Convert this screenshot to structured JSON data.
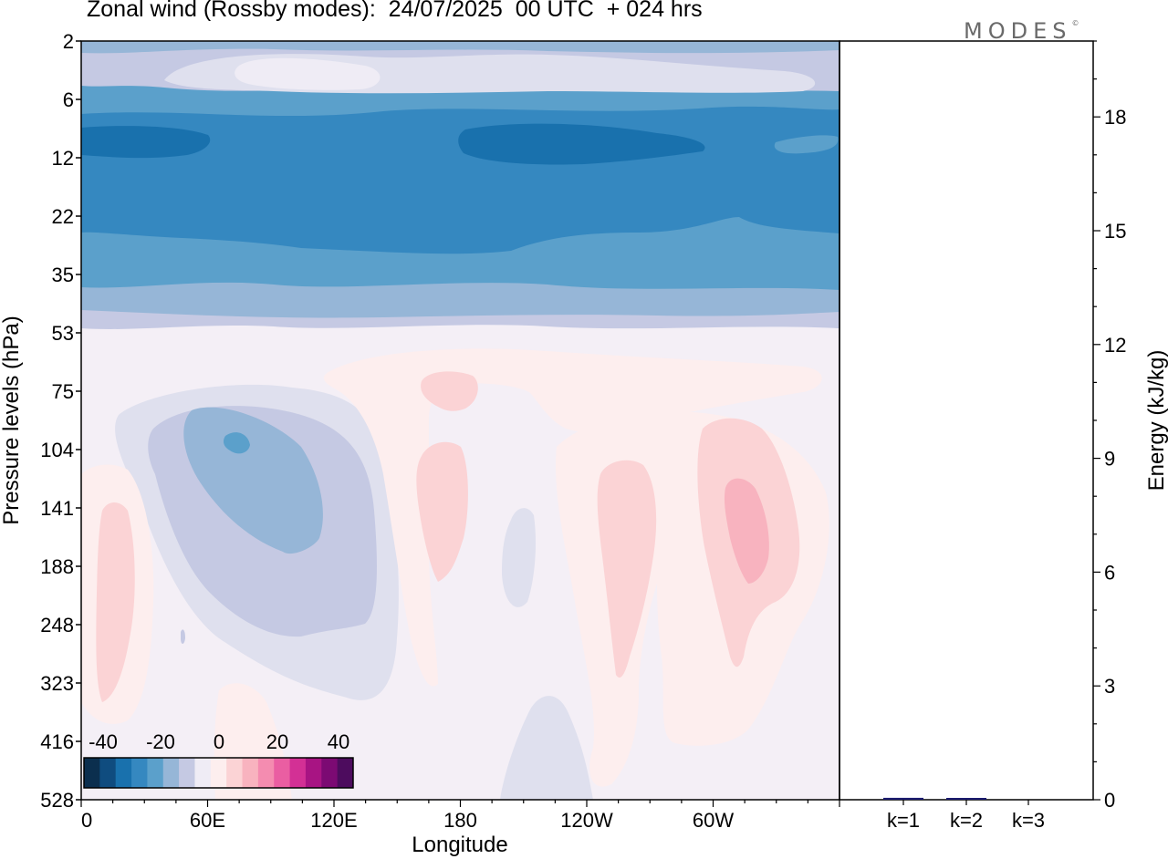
{
  "title": "Zonal wind (Rossby modes):  24/07/2025  00 UTC  + 024 hrs",
  "logo": {
    "text": "MODES",
    "mark": "©"
  },
  "chart_data": [
    {
      "type": "heatmap",
      "title": "Zonal wind (Rossby modes):  24/07/2025  00 UTC  + 024 hrs",
      "xlabel": "Longitude",
      "ylabel": "Pressure levels (hPa)",
      "x_ticks": [
        "0",
        "60E",
        "120E",
        "180",
        "120W",
        "60W"
      ],
      "y_ticks": [
        "2",
        "6",
        "12",
        "22",
        "35",
        "53",
        "75",
        "104",
        "141",
        "188",
        "248",
        "323",
        "416",
        "528"
      ],
      "colorbar": {
        "tick_labels": [
          "-40",
          "-20",
          "0",
          "20",
          "40"
        ],
        "colors": [
          "#0b2f4e",
          "#0f4c7f",
          "#1971ad",
          "#3588c0",
          "#5ba0cb",
          "#96b6d7",
          "#c5c9e3",
          "#efecf5",
          "#fdeeee",
          "#fbd3d5",
          "#f8b3bf",
          "#f48cb0",
          "#ea5ea2",
          "#d33095",
          "#a81483",
          "#7c0a73",
          "#4d0c5e"
        ]
      },
      "regions_description_values_m_s": {
        "upper_easterly_max": -25,
        "westerly_core_max_near_190hPa_60W": 10,
        "easterly_core_near_110hPa_75E": -15
      }
    },
    {
      "type": "bar",
      "ylabel": "Energy (kJ/kg)",
      "categories": [
        "k=1",
        "k=2",
        "k=3"
      ],
      "values": [
        0.05,
        0.02,
        0.0
      ],
      "ylim": [
        0,
        20
      ],
      "y_ticks": [
        "0",
        "3",
        "6",
        "9",
        "12",
        "15",
        "18"
      ],
      "bar_color": "#1a1a6e"
    }
  ]
}
